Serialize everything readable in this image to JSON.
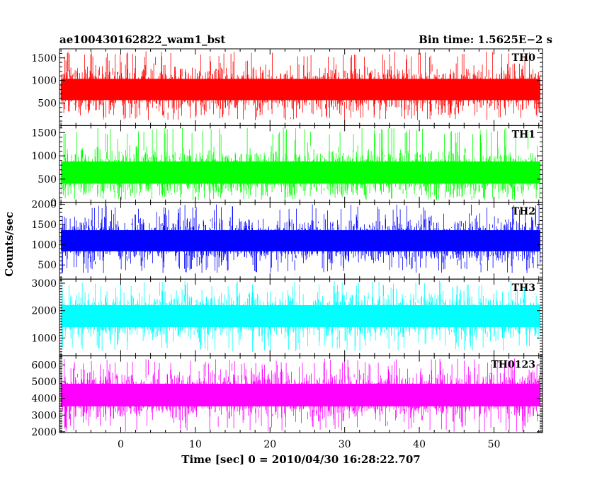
{
  "header": {
    "left_title": "ae100430162822_wam1_bst",
    "right_title": "Bin time: 1.5625E−2 s"
  },
  "chart_data": {
    "type": "line",
    "title": "ae100430162822_wam1_bst",
    "subtitle": "Bin time: 1.5625E−2 s",
    "xlabel": "Time [sec] 0 = 2010/04/30 16:28:22.707",
    "ylabel": "Counts/sec",
    "xlim": [
      -8.2,
      56.5
    ],
    "x_data_range": [
      -8.0,
      56.2
    ],
    "x_ticks": [
      0,
      10,
      20,
      30,
      40,
      50
    ],
    "x_tick_labels": [
      "0",
      "10",
      "20",
      "30",
      "40",
      "50"
    ],
    "bin_time": 0.015625,
    "grid": false,
    "panels": [
      {
        "name": "TH0",
        "color": "#ff0000",
        "ylim": [
          0,
          1700
        ],
        "y_ticks": [
          500,
          1000,
          1500
        ],
        "y_tick_labels": [
          "500",
          "1000",
          "1500"
        ],
        "mean": 800,
        "lower_envelope": 120,
        "upper_envelope": 1650
      },
      {
        "name": "TH1",
        "color": "#00ff00",
        "ylim": [
          0,
          1650
        ],
        "y_ticks": [
          0,
          500,
          1000,
          1500
        ],
        "y_tick_labels": [
          "0",
          "500",
          "1000",
          "1500"
        ],
        "mean": 640,
        "lower_envelope": 50,
        "upper_envelope": 1600
      },
      {
        "name": "TH2",
        "color": "#0000ff",
        "ylim": [
          150,
          2050
        ],
        "y_ticks": [
          500,
          1000,
          1500,
          2000
        ],
        "y_tick_labels": [
          "500",
          "1000",
          "1500",
          "2000"
        ],
        "mean": 1100,
        "lower_envelope": 300,
        "upper_envelope": 2000
      },
      {
        "name": "TH3",
        "color": "#00ffff",
        "ylim": [
          350,
          3150
        ],
        "y_ticks": [
          1000,
          2000,
          3000
        ],
        "y_tick_labels": [
          "1000",
          "2000",
          "3000"
        ],
        "mean": 1800,
        "lower_envelope": 500,
        "upper_envelope": 3100
      },
      {
        "name": "TH0123",
        "color": "#ff00ff",
        "ylim": [
          1950,
          6550
        ],
        "y_ticks": [
          2000,
          3000,
          4000,
          5000,
          6000
        ],
        "y_tick_labels": [
          "2000",
          "3000",
          "4000",
          "5000",
          "6000"
        ],
        "mean": 4200,
        "lower_envelope": 2000,
        "upper_envelope": 6400
      }
    ]
  }
}
